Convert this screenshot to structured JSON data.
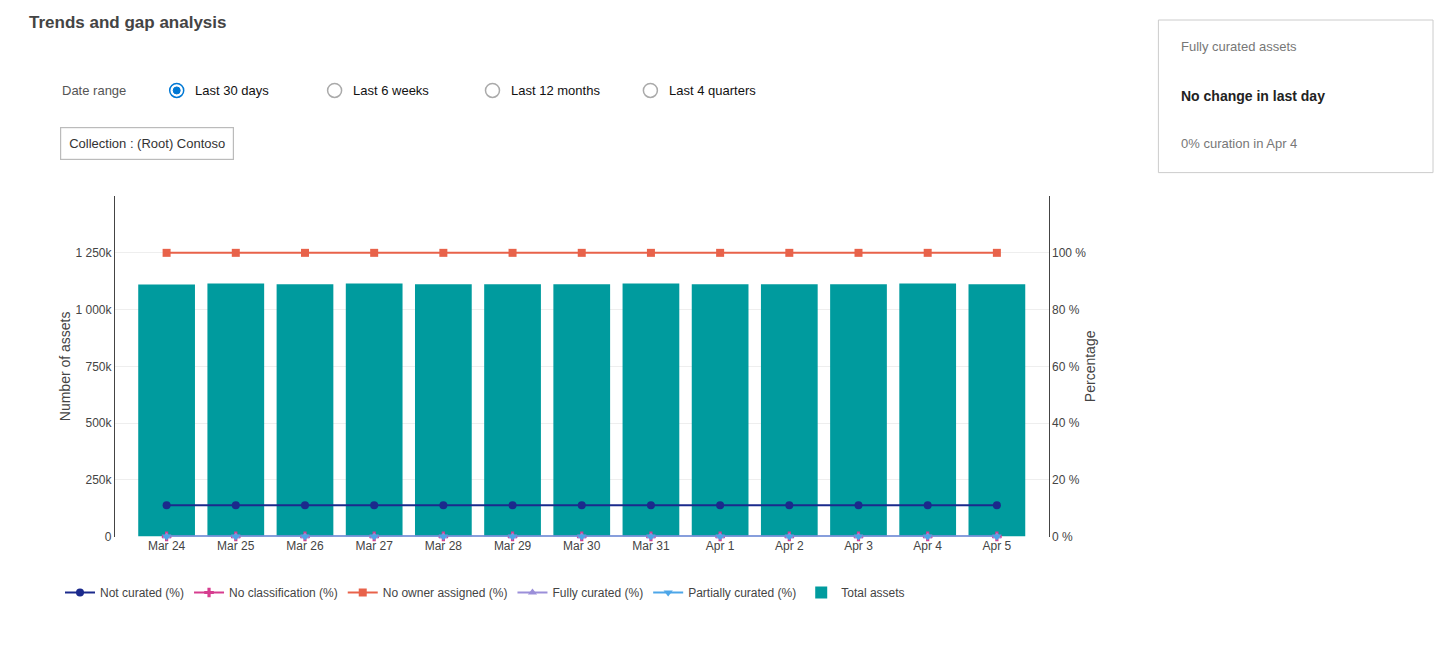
{
  "chart_data": {
    "type": "bar",
    "title": "Trends and gap analysis",
    "annotations": [
      "Date range",
      "Last 30 days",
      "Last 6 weeks",
      "Last 12 months",
      "Last 4 quarters",
      "Collection : (Root) Contoso",
      "Fully curated assets",
      "No change in last day",
      "0% curation in Apr 4"
    ],
    "categories": [
      "Mar 24",
      "Mar 25",
      "Mar 26",
      "Mar 27",
      "Mar 28",
      "Mar 29",
      "Mar 30",
      "Mar 31",
      "Apr 1",
      "Apr 2",
      "Apr 3",
      "Apr 4",
      "Apr 5"
    ],
    "series": [
      {
        "name": "Total assets",
        "type": "bar",
        "color": "#009B9E",
        "values": [
          1110000,
          1115000,
          1112000,
          1115000,
          1112000,
          1112000,
          1112000,
          1115000,
          1112000,
          1112000,
          1112000,
          1115000,
          1112000
        ]
      },
      {
        "name": "Not curated (%)",
        "type": "line",
        "axis": "y2",
        "color": "#1B2A8C",
        "marker": "circle",
        "values": [
          11,
          11,
          11,
          11,
          11,
          11,
          11,
          11,
          11,
          11,
          11,
          11,
          11
        ]
      },
      {
        "name": "No classification (%)",
        "type": "line",
        "axis": "y2",
        "color": "#D63D8F",
        "marker": "plus",
        "values": [
          0.05,
          0.05,
          0.05,
          0.05,
          0.05,
          0.05,
          0.05,
          0.05,
          0.05,
          0.05,
          0.05,
          0.05,
          0.05
        ]
      },
      {
        "name": "No owner assigned (%)",
        "type": "line",
        "axis": "y2",
        "color": "#E8624A",
        "marker": "square",
        "values": [
          100,
          100,
          100,
          100,
          100,
          100,
          100,
          100,
          100,
          100,
          100,
          100,
          100
        ]
      },
      {
        "name": "Fully curated (%)",
        "type": "line",
        "axis": "y2",
        "color": "#9B8FD9",
        "marker": "triangle-up",
        "values": [
          0.0,
          0.0,
          0.0,
          0.0,
          0.0,
          0.0,
          0.0,
          0.0,
          0.0,
          0.0,
          0.0,
          0.0,
          0.0
        ]
      },
      {
        "name": "Partially curated (%)",
        "type": "line",
        "axis": "y2",
        "color": "#4DA6E8",
        "marker": "triangle-down",
        "values": [
          0.0,
          0.0,
          0.0,
          0.0,
          0.0,
          0.0,
          0.0,
          0.0,
          0.0,
          0.0,
          0.0,
          0.0,
          0.0
        ]
      }
    ],
    "ylabel": "Number of assets",
    "ylim": [
      0,
      1500000
    ],
    "yticks": [
      0,
      {
        "value": 250000,
        "label": "250k"
      },
      {
        "value": 500000,
        "label": "500k"
      },
      {
        "value": 750000,
        "label": "750k"
      },
      {
        "value": 1000000,
        "label": "1 000k"
      },
      {
        "value": 1250000,
        "label": "1 250k"
      }
    ],
    "y2label": "Percentage",
    "y2lim": [
      0,
      120
    ],
    "y2ticks": [
      {
        "value": 0,
        "label": "0 %"
      },
      {
        "value": 20,
        "label": "20 %"
      },
      {
        "value": 40,
        "label": "40 %"
      },
      {
        "value": 60,
        "label": "60 %"
      },
      {
        "value": 80,
        "label": "80 %"
      },
      {
        "value": 100,
        "label": "100 %"
      }
    ],
    "grid": true,
    "legend": "bottom"
  }
}
